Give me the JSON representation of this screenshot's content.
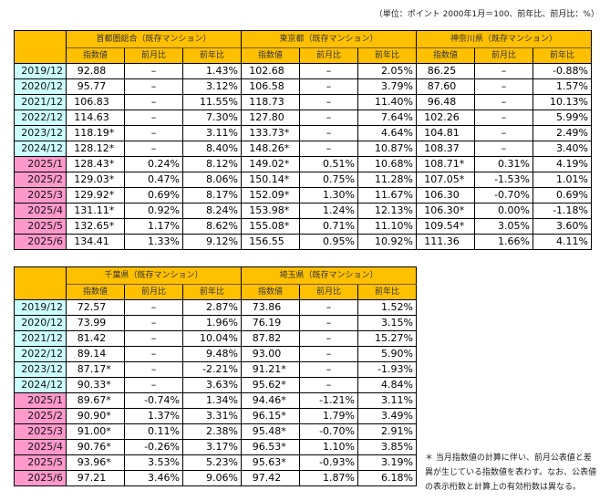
{
  "unit_note": "（単位：ポイント  2000年1月＝100、前年比、前月比：%）",
  "column_labels": {
    "index": "指数値",
    "mom": "前月比",
    "yoy": "前年比"
  },
  "dash": "–",
  "table1": {
    "regions": [
      "首都圏総合（既存マンション）",
      "東京都（既存マンション）",
      "神奈川県（既存マンション）"
    ],
    "rows": [
      {
        "period": "2019/12",
        "type": "year",
        "cells": [
          [
            "92.88",
            "",
            "–",
            "1.43%"
          ],
          [
            "102.68",
            "",
            "–",
            "2.05%"
          ],
          [
            "86.25",
            "",
            "–",
            "-0.88%"
          ]
        ]
      },
      {
        "period": "2020/12",
        "type": "year",
        "cells": [
          [
            "95.77",
            "",
            "–",
            "3.12%"
          ],
          [
            "106.58",
            "",
            "–",
            "3.79%"
          ],
          [
            "87.60",
            "",
            "–",
            "1.57%"
          ]
        ]
      },
      {
        "period": "2021/12",
        "type": "year",
        "cells": [
          [
            "106.83",
            "",
            "–",
            "11.55%"
          ],
          [
            "118.73",
            "",
            "–",
            "11.40%"
          ],
          [
            "96.48",
            "",
            "–",
            "10.13%"
          ]
        ]
      },
      {
        "period": "2022/12",
        "type": "year",
        "cells": [
          [
            "114.63",
            "",
            "–",
            "7.30%"
          ],
          [
            "127.80",
            "",
            "–",
            "7.64%"
          ],
          [
            "102.26",
            "",
            "–",
            "5.99%"
          ]
        ]
      },
      {
        "period": "2023/12",
        "type": "year",
        "cells": [
          [
            "118.19",
            "*",
            "–",
            "3.11%"
          ],
          [
            "133.73",
            "*",
            "–",
            "4.64%"
          ],
          [
            "104.81",
            "",
            "–",
            "2.49%"
          ]
        ]
      },
      {
        "period": "2024/12",
        "type": "year",
        "cells": [
          [
            "128.12",
            "*",
            "–",
            "8.40%"
          ],
          [
            "148.26",
            "*",
            "–",
            "10.87%"
          ],
          [
            "108.37",
            "",
            "–",
            "3.40%"
          ]
        ]
      },
      {
        "period": "2025/1",
        "type": "month",
        "cells": [
          [
            "128.43",
            "*",
            "0.24%",
            "8.12%"
          ],
          [
            "149.02",
            "*",
            "0.51%",
            "10.68%"
          ],
          [
            "108.71",
            "*",
            "0.31%",
            "4.19%"
          ]
        ]
      },
      {
        "period": "2025/2",
        "type": "month",
        "cells": [
          [
            "129.03",
            "*",
            "0.47%",
            "8.06%"
          ],
          [
            "150.14",
            "*",
            "0.75%",
            "11.28%"
          ],
          [
            "107.05",
            "*",
            "-1.53%",
            "1.01%"
          ]
        ]
      },
      {
        "period": "2025/3",
        "type": "month",
        "cells": [
          [
            "129.92",
            "*",
            "0.69%",
            "8.17%"
          ],
          [
            "152.09",
            "*",
            "1.30%",
            "11.67%"
          ],
          [
            "106.30",
            "",
            "-0.70%",
            "0.69%"
          ]
        ]
      },
      {
        "period": "2025/4",
        "type": "month",
        "cells": [
          [
            "131.11",
            "*",
            "0.92%",
            "8.24%"
          ],
          [
            "153.98",
            "*",
            "1.24%",
            "12.13%"
          ],
          [
            "106.30",
            "*",
            "0.00%",
            "-1.18%"
          ]
        ]
      },
      {
        "period": "2025/5",
        "type": "month",
        "cells": [
          [
            "132.65",
            "*",
            "1.17%",
            "8.62%"
          ],
          [
            "155.08",
            "*",
            "0.71%",
            "11.10%"
          ],
          [
            "109.54",
            "*",
            "3.05%",
            "3.60%"
          ]
        ]
      },
      {
        "period": "2025/6",
        "type": "month",
        "cells": [
          [
            "134.41",
            "",
            "1.33%",
            "9.12%"
          ],
          [
            "156.55",
            "",
            "0.95%",
            "10.92%"
          ],
          [
            "111.36",
            "",
            "1.66%",
            "4.11%"
          ]
        ]
      }
    ]
  },
  "table2": {
    "regions": [
      "千葉県（既存マンション）",
      "埼玉県（既存マンション）"
    ],
    "rows": [
      {
        "period": "2019/12",
        "type": "year",
        "cells": [
          [
            "72.57",
            "",
            "–",
            "2.87%"
          ],
          [
            "73.86",
            "",
            "–",
            "1.52%"
          ]
        ]
      },
      {
        "period": "2020/12",
        "type": "year",
        "cells": [
          [
            "73.99",
            "",
            "–",
            "1.96%"
          ],
          [
            "76.19",
            "",
            "–",
            "3.15%"
          ]
        ]
      },
      {
        "period": "2021/12",
        "type": "year",
        "cells": [
          [
            "81.42",
            "",
            "–",
            "10.04%"
          ],
          [
            "87.82",
            "",
            "–",
            "15.27%"
          ]
        ]
      },
      {
        "period": "2022/12",
        "type": "year",
        "cells": [
          [
            "89.14",
            "",
            "–",
            "9.48%"
          ],
          [
            "93.00",
            "",
            "–",
            "5.90%"
          ]
        ]
      },
      {
        "period": "2023/12",
        "type": "year",
        "cells": [
          [
            "87.17",
            "*",
            "–",
            "-2.21%"
          ],
          [
            "91.21",
            "*",
            "–",
            "-1.93%"
          ]
        ]
      },
      {
        "period": "2024/12",
        "type": "year",
        "cells": [
          [
            "90.33",
            "*",
            "–",
            "3.63%"
          ],
          [
            "95.62",
            "*",
            "–",
            "4.84%"
          ]
        ]
      },
      {
        "period": "2025/1",
        "type": "month",
        "cells": [
          [
            "89.67",
            "*",
            "-0.74%",
            "1.34%"
          ],
          [
            "94.46",
            "*",
            "-1.21%",
            "3.11%"
          ]
        ]
      },
      {
        "period": "2025/2",
        "type": "month",
        "cells": [
          [
            "90.90",
            "*",
            "1.37%",
            "3.31%"
          ],
          [
            "96.15",
            "*",
            "1.79%",
            "3.49%"
          ]
        ]
      },
      {
        "period": "2025/3",
        "type": "month",
        "cells": [
          [
            "91.00",
            "*",
            "0.11%",
            "2.38%"
          ],
          [
            "95.48",
            "*",
            "-0.70%",
            "2.91%"
          ]
        ]
      },
      {
        "period": "2025/4",
        "type": "month",
        "cells": [
          [
            "90.76",
            "*",
            "-0.26%",
            "3.17%"
          ],
          [
            "96.53",
            "*",
            "1.10%",
            "3.85%"
          ]
        ]
      },
      {
        "period": "2025/5",
        "type": "month",
        "cells": [
          [
            "93.96",
            "*",
            "3.53%",
            "5.23%"
          ],
          [
            "95.63",
            "*",
            "-0.93%",
            "3.19%"
          ]
        ]
      },
      {
        "period": "2025/6",
        "type": "month",
        "cells": [
          [
            "97.21",
            "",
            "3.46%",
            "9.06%"
          ],
          [
            "97.42",
            "",
            "1.87%",
            "6.18%"
          ]
        ]
      }
    ]
  },
  "footnote": "＊ 当月指数値の計算に伴い、前月公表値と差異が生じている指数値を表わす。なお、公表値の表示桁数と計算上の有効桁数は異なる。",
  "colors": {
    "header": "#FFC000",
    "year_label": "#CCFFFF",
    "month_label": "#FF99CC"
  }
}
